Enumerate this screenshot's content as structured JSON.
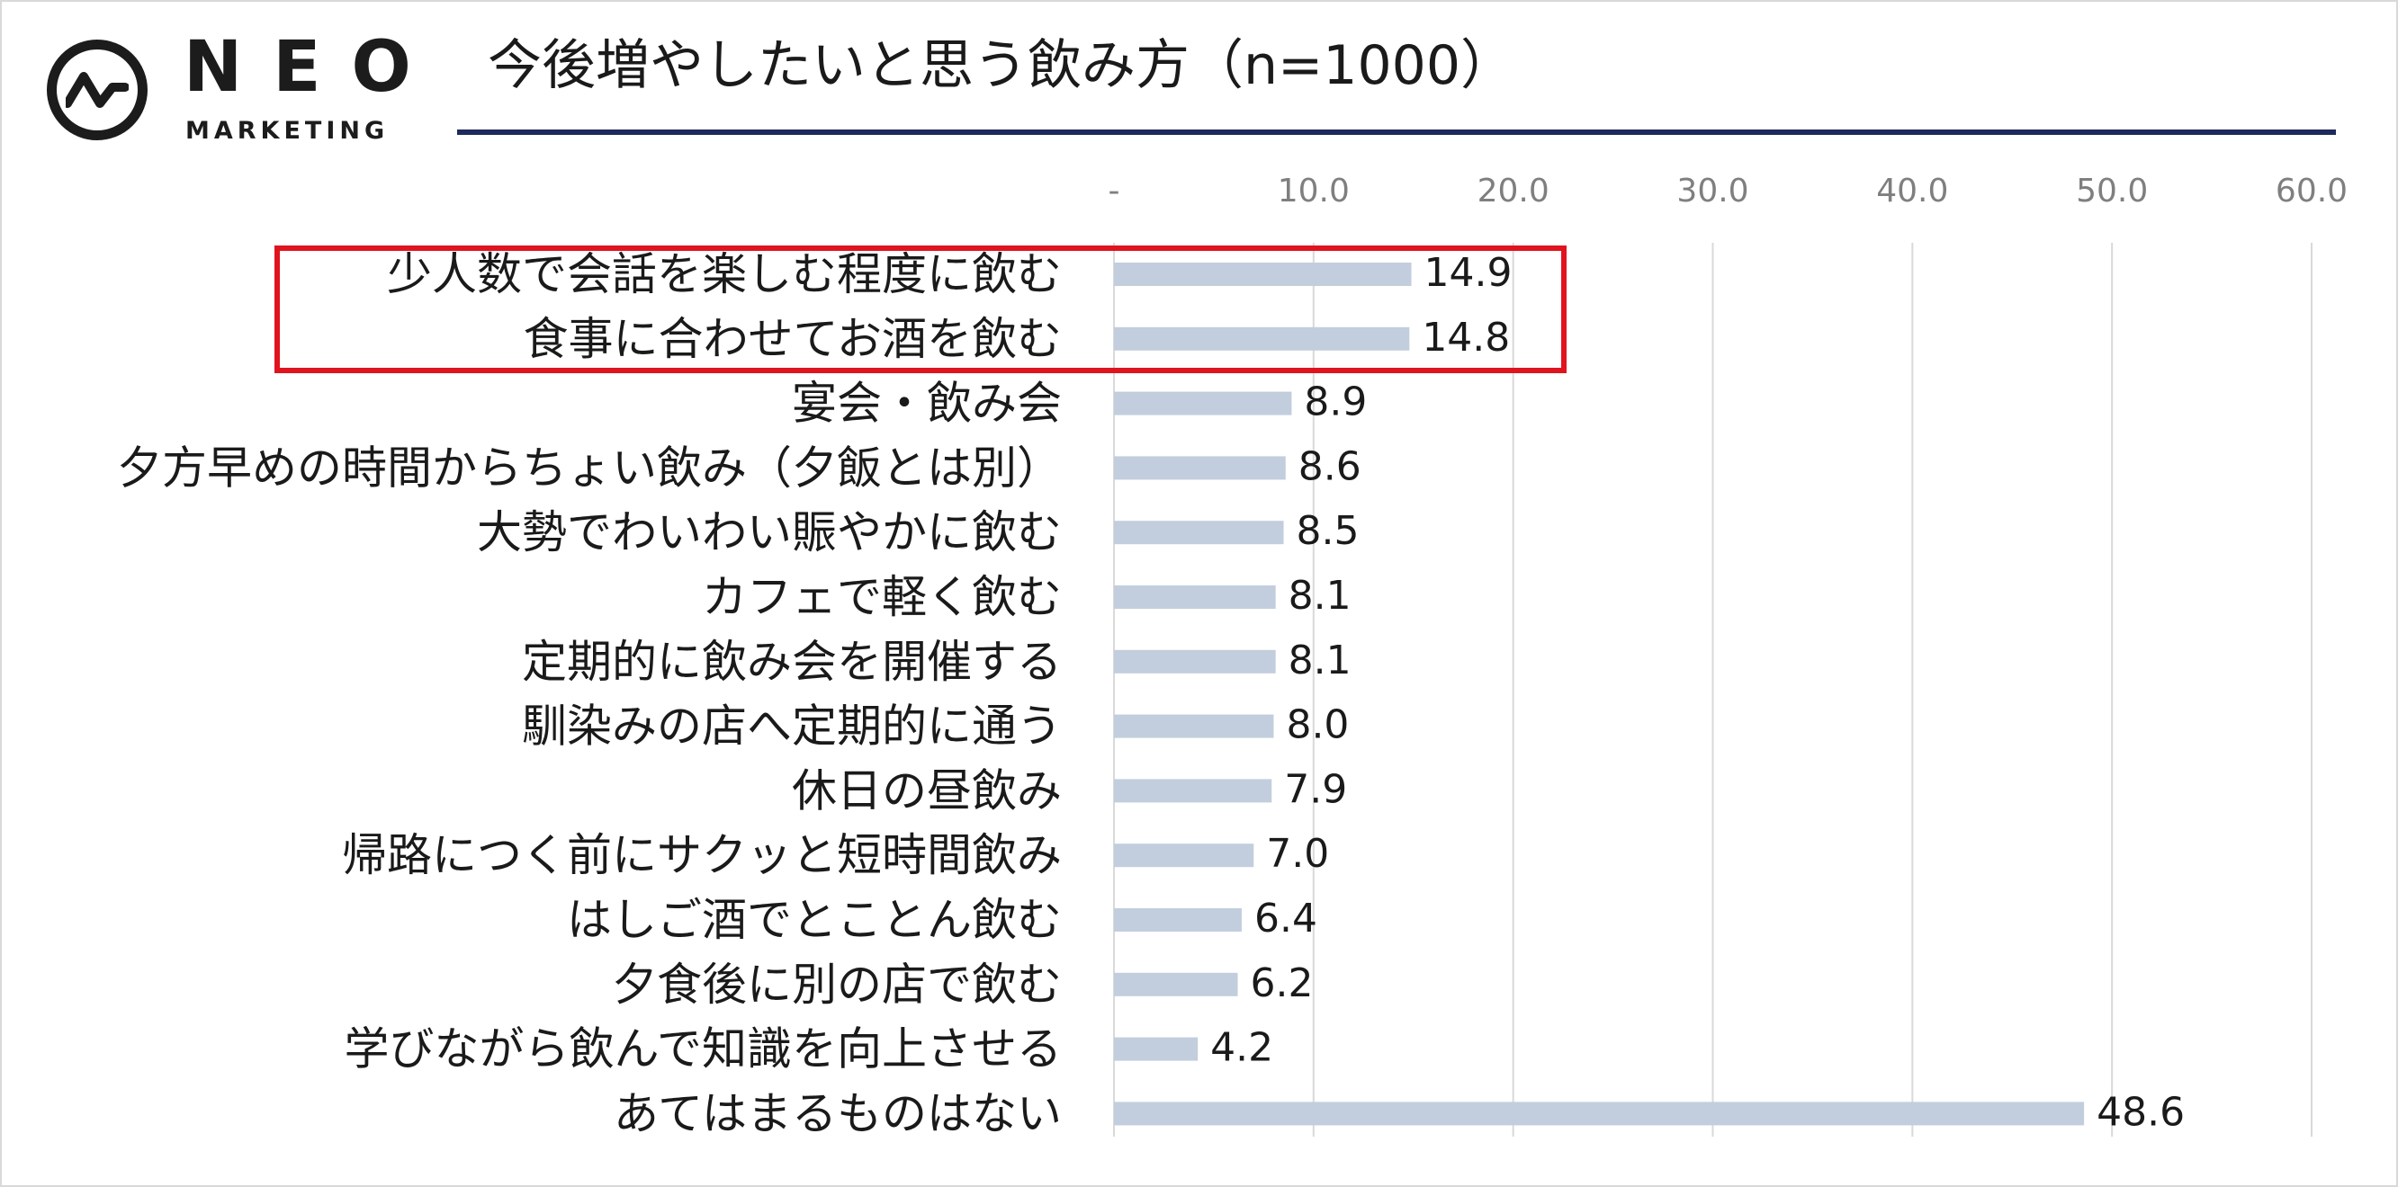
{
  "logo": {
    "name": "NEO",
    "subtitle": "MARKETING"
  },
  "title": "今後増やしたいと思う飲み方（n=1000）",
  "colors": {
    "bar": "#c2cedd",
    "grid": "#d9d9d9",
    "tick_text": "#7f7f7f",
    "label_text": "#1a1a1a",
    "title_rule": "#1f2a5c",
    "highlight": "#e0141e"
  },
  "chart_data": {
    "type": "bar",
    "orientation": "horizontal",
    "categories": [
      "少人数で会話を楽しむ程度に飲む",
      "食事に合わせてお酒を飲む",
      "宴会・飲み会",
      "夕方早めの時間からちょい飲み（夕飯とは別）",
      "大勢でわいわい賑やかに飲む",
      "カフェで軽く飲む",
      "定期的に飲み会を開催する",
      "馴染みの店へ定期的に通う",
      "休日の昼飲み",
      "帰路につく前にサクッと短時間飲み",
      "はしご酒でとことん飲む",
      "夕食後に別の店で飲む",
      "学びながら飲んで知識を向上させる",
      "あてはまるものはない"
    ],
    "values": [
      14.9,
      14.8,
      8.9,
      8.6,
      8.5,
      8.1,
      8.1,
      8.0,
      7.9,
      7.0,
      6.4,
      6.2,
      4.2,
      48.6
    ],
    "value_labels": [
      "14.9",
      "14.8",
      "8.9",
      "8.6",
      "8.5",
      "8.1",
      "8.1",
      "8.0",
      "7.9",
      "7.0",
      "6.4",
      "6.2",
      "4.2",
      "48.6"
    ],
    "xlim": [
      0,
      60
    ],
    "xticks": [
      0,
      10,
      20,
      30,
      40,
      50,
      60
    ],
    "xtick_labels": [
      "-",
      "10.0",
      "20.0",
      "30.0",
      "40.0",
      "50.0",
      "60.0"
    ],
    "axis_position": "top",
    "grid": true,
    "highlighted_categories": [
      0,
      1
    ]
  }
}
